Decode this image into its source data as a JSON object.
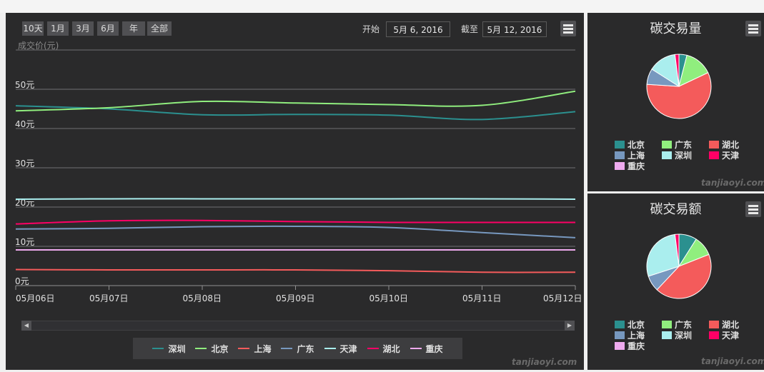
{
  "range_selector": {
    "buttons": [
      "10天",
      "1月",
      "3月",
      "6月",
      "年",
      "全部"
    ],
    "from_label": "开始",
    "from_value": "5月 6, 2016",
    "to_label": "截至",
    "to_value": "5月 12, 2016"
  },
  "credit": "tanjiaoyi.com",
  "chart_data": [
    {
      "type": "line",
      "ylabel": "成交价(元)",
      "ylim": [
        0,
        60
      ],
      "yticks": [
        "0元",
        "10元",
        "20元",
        "30元",
        "40元",
        "50元"
      ],
      "x_tick_labels": [
        "05月06日",
        "05月07日",
        "05月08日",
        "05月09日",
        "05月10日",
        "05月11日",
        "05月12日"
      ],
      "x": [
        "2016-05-06",
        "2016-05-07",
        "2016-05-08",
        "2016-05-09",
        "2016-05-10",
        "2016-05-11",
        "2016-05-12"
      ],
      "series": [
        {
          "name": "深圳",
          "color": "#2b908f",
          "values": [
            45.8,
            45.0,
            43.5,
            43.6,
            43.4,
            42.3,
            44.3
          ]
        },
        {
          "name": "北京",
          "color": "#90ee7e",
          "values": [
            44.5,
            45.3,
            46.9,
            46.5,
            46.1,
            45.9,
            49.5
          ]
        },
        {
          "name": "上海",
          "color": "#f45b5b",
          "values": [
            4.1,
            4.0,
            4.0,
            4.0,
            3.8,
            3.4,
            3.4
          ]
        },
        {
          "name": "广东",
          "color": "#7798bf",
          "values": [
            14.4,
            14.6,
            15.0,
            15.1,
            14.8,
            13.5,
            12.2
          ]
        },
        {
          "name": "天津",
          "color": "#aaeeee",
          "values": [
            22.0,
            22.1,
            22.1,
            22.1,
            22.1,
            22.1,
            22.0
          ]
        },
        {
          "name": "湖北",
          "color": "#ff0066",
          "values": [
            15.7,
            16.5,
            16.6,
            16.3,
            16.1,
            16.1,
            16.1
          ]
        },
        {
          "name": "重庆",
          "color": "#eeaaee",
          "values": [
            9.1,
            9.1,
            9.1,
            9.1,
            9.1,
            9.1,
            9.1
          ]
        }
      ],
      "legend": "bottom",
      "grid": true
    },
    {
      "type": "pie",
      "title": "碳交易量",
      "labels": [
        "北京",
        "广东",
        "湖北",
        "上海",
        "深圳",
        "天津"
      ],
      "colors": [
        "#2b908f",
        "#90ee7e",
        "#f45b5b",
        "#7798bf",
        "#aaeeee",
        "#ff0066"
      ],
      "values": [
        4,
        14,
        58,
        8,
        14,
        2
      ]
    },
    {
      "type": "pie",
      "title": "碳交易额",
      "labels": [
        "北京",
        "广东",
        "湖北",
        "上海",
        "深圳",
        "天津"
      ],
      "colors": [
        "#2b908f",
        "#90ee7e",
        "#f45b5b",
        "#7798bf",
        "#aaeeee",
        "#ff0066"
      ],
      "values": [
        9,
        10,
        43,
        8,
        28,
        2
      ]
    }
  ],
  "pie_legend": [
    {
      "name": "北京",
      "color": "#2b908f"
    },
    {
      "name": "广东",
      "color": "#90ee7e"
    },
    {
      "name": "湖北",
      "color": "#f45b5b"
    },
    {
      "name": "上海",
      "color": "#7798bf"
    },
    {
      "name": "深圳",
      "color": "#aaeeee"
    },
    {
      "name": "天津",
      "color": "#ff0066"
    },
    {
      "name": "重庆",
      "color": "#eeaaee"
    }
  ],
  "icons": {
    "menu": "hamburger-menu-icon",
    "scroll_left": "arrow-left-icon",
    "scroll_right": "arrow-right-icon"
  }
}
